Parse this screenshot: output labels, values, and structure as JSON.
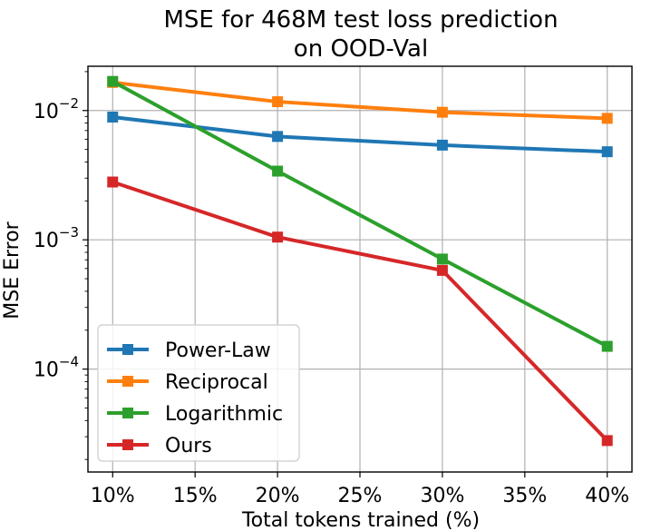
{
  "chart_data": {
    "type": "line",
    "title": "MSE for 468M test loss prediction",
    "subtitle": "on OOD-Val",
    "xlabel": "Total tokens trained (%)",
    "ylabel": "MSE Error",
    "x": [
      10,
      20,
      30,
      40
    ],
    "xlim": [
      8.5,
      41.5
    ],
    "xticks": [
      10,
      15,
      20,
      25,
      30,
      35,
      40
    ],
    "xtick_labels": [
      "10%",
      "15%",
      "20%",
      "25%",
      "30%",
      "35%",
      "40%"
    ],
    "yscale": "log",
    "ylim": [
      1.6e-05,
      0.022
    ],
    "yticks": [
      0.0001,
      0.001,
      0.01
    ],
    "ytick_labels": [
      {
        "base": "10",
        "exp": "−4"
      },
      {
        "base": "10",
        "exp": "−3"
      },
      {
        "base": "10",
        "exp": "−2"
      }
    ],
    "grid": true,
    "legend_position": "lower-left",
    "series": [
      {
        "name": "Power-Law",
        "color": "#1f77b4",
        "values": [
          0.0089,
          0.0063,
          0.0054,
          0.0048
        ]
      },
      {
        "name": "Reciprocal",
        "color": "#ff7f0e",
        "values": [
          0.0165,
          0.0117,
          0.0097,
          0.0087
        ]
      },
      {
        "name": "Logarithmic",
        "color": "#2ca02c",
        "values": [
          0.0168,
          0.0034,
          0.00071,
          0.00015
        ]
      },
      {
        "name": "Ours",
        "color": "#d62728",
        "values": [
          0.0028,
          0.00105,
          0.00058,
          2.8e-05
        ]
      }
    ]
  }
}
